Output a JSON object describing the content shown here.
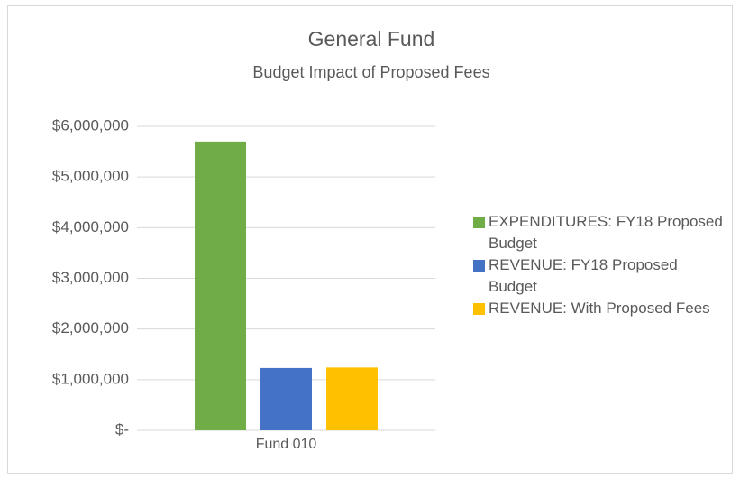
{
  "chart_data": {
    "type": "bar",
    "title": "General Fund",
    "subtitle": "Budget Impact of Proposed Fees",
    "categories": [
      "Fund 010"
    ],
    "series": [
      {
        "name": "EXPENDITURES: FY18 Proposed Budget",
        "color": "#70ad47",
        "values": [
          5700000
        ]
      },
      {
        "name": "REVENUE: FY18 Proposed Budget",
        "color": "#4472c4",
        "values": [
          1230000
        ]
      },
      {
        "name": "REVENUE: With Proposed Fees",
        "color": "#ffc000",
        "values": [
          1240000
        ]
      }
    ],
    "ylim": [
      0,
      6000000
    ],
    "yticks": [
      {
        "value": 0,
        "label": "$-"
      },
      {
        "value": 1000000,
        "label": "$1,000,000"
      },
      {
        "value": 2000000,
        "label": "$2,000,000"
      },
      {
        "value": 3000000,
        "label": "$3,000,000"
      },
      {
        "value": 4000000,
        "label": "$4,000,000"
      },
      {
        "value": 5000000,
        "label": "$5,000,000"
      },
      {
        "value": 6000000,
        "label": "$6,000,000"
      }
    ],
    "grid": true,
    "legend": "right"
  }
}
